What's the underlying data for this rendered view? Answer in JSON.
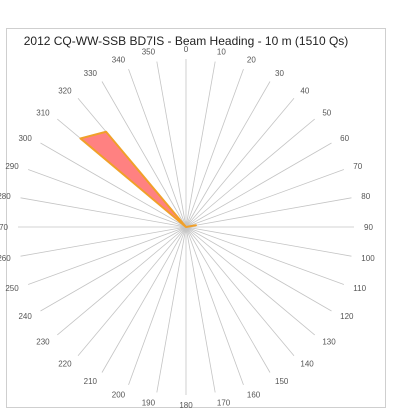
{
  "chart_data": {
    "type": "radar",
    "title": "2012 CQ-WW-SSB BD7IS - Beam Heading - 10 m (1510 Qs)",
    "angle_unit": "degrees",
    "angles": [
      0,
      10,
      20,
      30,
      40,
      50,
      60,
      70,
      80,
      90,
      100,
      110,
      120,
      130,
      140,
      150,
      160,
      170,
      180,
      190,
      200,
      210,
      220,
      230,
      240,
      250,
      260,
      270,
      280,
      290,
      300,
      310,
      320,
      330,
      340,
      350
    ],
    "tick_labels": [
      "0",
      "10",
      "20",
      "30",
      "40",
      "50",
      "60",
      "70",
      "80",
      "90",
      "100",
      "110",
      "120",
      "130",
      "140",
      "150",
      "160",
      "170",
      "180",
      "190",
      "200",
      "210",
      "220",
      "230",
      "240",
      "250",
      "260",
      "270",
      "280",
      "290",
      "300",
      "310",
      "320",
      "330",
      "340",
      "350"
    ],
    "series": [
      {
        "values": [
          0,
          0,
          0,
          0,
          0,
          0,
          0,
          0,
          0.06,
          0,
          0,
          0,
          0,
          0,
          0,
          0,
          0,
          0,
          0,
          0,
          0,
          0,
          0,
          0,
          0,
          0,
          0,
          0,
          0,
          0,
          0,
          0.82,
          0.74,
          0,
          0,
          0
        ]
      }
    ],
    "series_style": {
      "fill": "#ff6b6b",
      "fill_opacity": 0.85,
      "stroke": "#f0a02a"
    },
    "rlim": [
      0,
      1
    ],
    "grid": true
  }
}
